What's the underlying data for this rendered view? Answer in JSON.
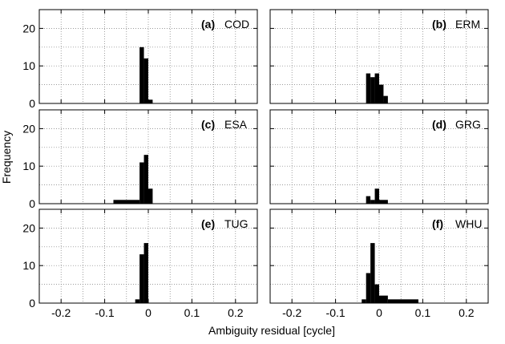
{
  "chart_data": {
    "type": "histogram",
    "xlabel": "Ambiguity residual [cycle]",
    "ylabel": "Frequency",
    "xlim": [
      -0.25,
      0.25
    ],
    "ylim": [
      0,
      25
    ],
    "xticks": [
      -0.2,
      -0.1,
      0,
      0.1,
      0.2
    ],
    "xtick_labels": [
      "-0.2",
      "-0.1",
      "0",
      "0.1",
      "0.2"
    ],
    "yticks": [
      0,
      10,
      20
    ],
    "ytick_labels": [
      "0",
      "10",
      "20"
    ],
    "grid": true,
    "panels": [
      {
        "tag": "(a)",
        "name": "COD",
        "bars": [
          [
            -0.02,
            -0.01,
            15
          ],
          [
            -0.01,
            0.0,
            12
          ],
          [
            0.0,
            0.01,
            1
          ]
        ]
      },
      {
        "tag": "(b)",
        "name": "ERM",
        "bars": [
          [
            -0.03,
            -0.02,
            8
          ],
          [
            -0.02,
            -0.01,
            7
          ],
          [
            -0.01,
            0.0,
            8
          ],
          [
            0.0,
            0.01,
            5
          ],
          [
            0.01,
            0.02,
            2
          ]
        ]
      },
      {
        "tag": "(c)",
        "name": "ESA",
        "bars": [
          [
            -0.08,
            -0.02,
            1
          ],
          [
            -0.02,
            -0.01,
            11
          ],
          [
            -0.01,
            0.0,
            13
          ],
          [
            0.0,
            0.01,
            4
          ]
        ]
      },
      {
        "tag": "(d)",
        "name": "GRG",
        "bars": [
          [
            -0.03,
            -0.02,
            2
          ],
          [
            -0.02,
            -0.01,
            1
          ],
          [
            -0.01,
            0.0,
            4
          ],
          [
            0.0,
            0.02,
            1
          ]
        ]
      },
      {
        "tag": "(e)",
        "name": "TUG",
        "bars": [
          [
            -0.03,
            -0.02,
            1
          ],
          [
            -0.02,
            -0.01,
            13
          ],
          [
            -0.01,
            0.0,
            16
          ]
        ]
      },
      {
        "tag": "(f)",
        "name": "WHU",
        "bars": [
          [
            -0.04,
            -0.03,
            1
          ],
          [
            -0.03,
            -0.02,
            8
          ],
          [
            -0.02,
            -0.01,
            16
          ],
          [
            -0.01,
            0.0,
            5
          ],
          [
            0.0,
            0.02,
            2
          ],
          [
            0.02,
            0.09,
            1
          ]
        ]
      }
    ]
  }
}
